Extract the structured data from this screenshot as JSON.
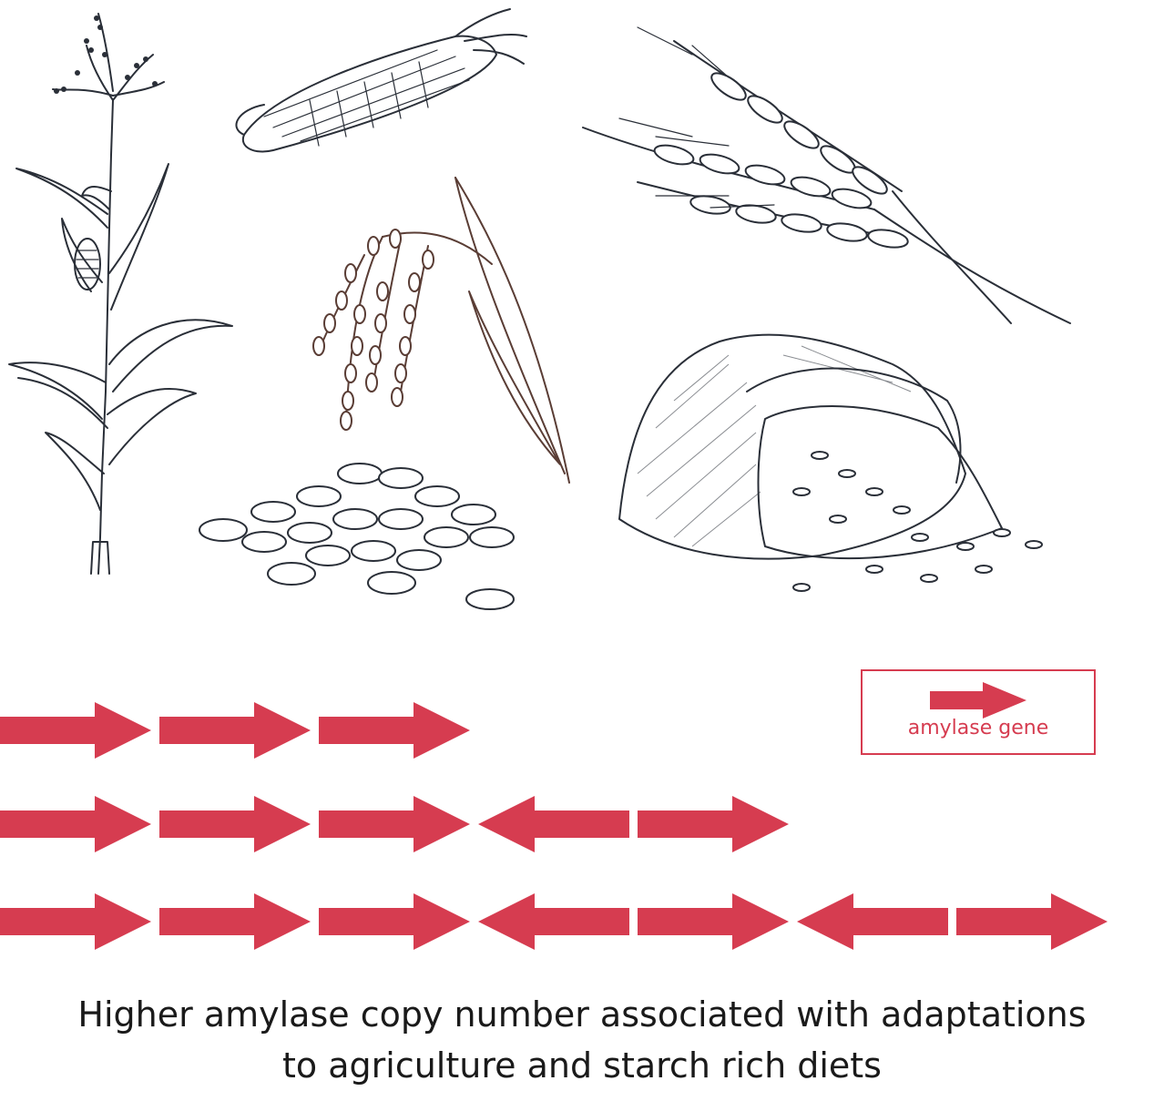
{
  "illustrations": [
    {
      "icon": "corn-plant-icon"
    },
    {
      "icon": "corn-cob-icon"
    },
    {
      "icon": "rice-plant-icon"
    },
    {
      "icon": "rice-grain-pile-icon"
    },
    {
      "icon": "wheat-ears-icon"
    },
    {
      "icon": "grain-sack-icon"
    }
  ],
  "gene_rows": [
    {
      "directions": [
        "right",
        "right",
        "right"
      ]
    },
    {
      "directions": [
        "right",
        "right",
        "right",
        "left",
        "right"
      ]
    },
    {
      "directions": [
        "right",
        "right",
        "right",
        "left",
        "right",
        "left",
        "right"
      ]
    }
  ],
  "legend": {
    "label": "amylase gene",
    "icon": "right-arrow-icon"
  },
  "caption": {
    "line1": "Higher amylase copy number associated with adaptations",
    "line2": "to agriculture and starch rich diets"
  },
  "colors": {
    "gene_arrow": "#d63c50",
    "ink": "#2a2f38",
    "rice_ink": "#5a3d35",
    "caption_text": "#1a1a1a"
  }
}
